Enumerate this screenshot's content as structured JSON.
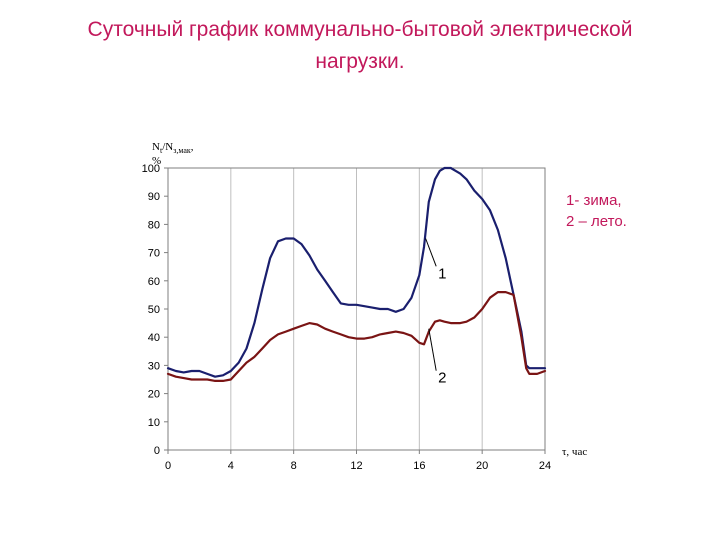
{
  "title": {
    "line1": "Суточный график коммунально-бытовой электрической",
    "line2": "нагрузки."
  },
  "legend": {
    "line1": "1- зима,",
    "line2": "2 – лето."
  },
  "chart_data": {
    "type": "line",
    "ylabel_line1": "N",
    "ylabel_sub1": "t",
    "ylabel_mid": "/N",
    "ylabel_sub2": "з,мак",
    "ylabel_tail": ",",
    "ylabel_line2": "%",
    "xlabel": "τ, час",
    "xlim": [
      0,
      24
    ],
    "ylim": [
      0,
      100
    ],
    "xticks": [
      0,
      4,
      8,
      12,
      16,
      20,
      24
    ],
    "yticks": [
      0,
      10,
      20,
      30,
      40,
      50,
      60,
      70,
      80,
      90,
      100
    ],
    "grid": "vertical",
    "series": [
      {
        "name": "1",
        "color": "#1a1f6e",
        "x": [
          0,
          0.5,
          1,
          1.5,
          2,
          2.5,
          3,
          3.5,
          4,
          4.5,
          5,
          5.5,
          6,
          6.5,
          7,
          7.5,
          8,
          8.5,
          9,
          9.5,
          10,
          10.5,
          11,
          11.5,
          12,
          12.5,
          13,
          13.5,
          14,
          14.5,
          15,
          15.5,
          16,
          16.3,
          16.6,
          17,
          17.3,
          17.6,
          18,
          18.3,
          18.6,
          19,
          19.5,
          20,
          20.5,
          21,
          21.5,
          22,
          22.5,
          22.8,
          23,
          23.5,
          24
        ],
        "y": [
          29,
          28,
          27.5,
          28,
          28,
          27,
          26,
          26.5,
          28,
          31,
          36,
          45,
          57,
          68,
          74,
          75,
          75,
          73,
          69,
          64,
          60,
          56,
          52,
          51.5,
          51.5,
          51,
          50.5,
          50,
          50,
          49,
          50,
          54,
          62,
          72,
          88,
          96,
          99,
          100,
          100,
          99,
          98,
          96,
          92,
          89,
          85,
          78,
          68,
          55,
          42,
          30,
          29,
          29,
          29
        ]
      },
      {
        "name": "2",
        "color": "#7a1414",
        "x": [
          0,
          0.5,
          1,
          1.5,
          2,
          2.5,
          3,
          3.5,
          4,
          4.5,
          5,
          5.5,
          6,
          6.5,
          7,
          7.5,
          8,
          8.5,
          9,
          9.5,
          10,
          10.5,
          11,
          11.5,
          12,
          12.5,
          13,
          13.5,
          14,
          14.5,
          15,
          15.5,
          16,
          16.3,
          16.6,
          17,
          17.3,
          17.6,
          18,
          18.3,
          18.6,
          19,
          19.5,
          20,
          20.5,
          21,
          21.5,
          22,
          22.5,
          22.8,
          23,
          23.5,
          24
        ],
        "y": [
          27,
          26,
          25.5,
          25,
          25,
          25,
          24.5,
          24.5,
          25,
          28,
          31,
          33,
          36,
          39,
          41,
          42,
          43,
          44,
          45,
          44.5,
          43,
          42,
          41,
          40,
          39.5,
          39.5,
          40,
          41,
          41.5,
          42,
          41.5,
          40.5,
          38,
          37.5,
          42,
          45.5,
          46,
          45.5,
          45,
          45,
          45,
          45.5,
          47,
          50,
          54,
          56,
          56,
          55,
          40,
          29,
          27,
          27,
          28
        ]
      }
    ],
    "annotations": [
      {
        "text": "1",
        "series": "1",
        "at_x": 16.4,
        "at_y": 75,
        "label_x": 17.2,
        "label_y": 63
      },
      {
        "text": "2",
        "series": "2",
        "at_x": 16.6,
        "at_y": 43,
        "label_x": 17.2,
        "label_y": 26
      }
    ]
  }
}
